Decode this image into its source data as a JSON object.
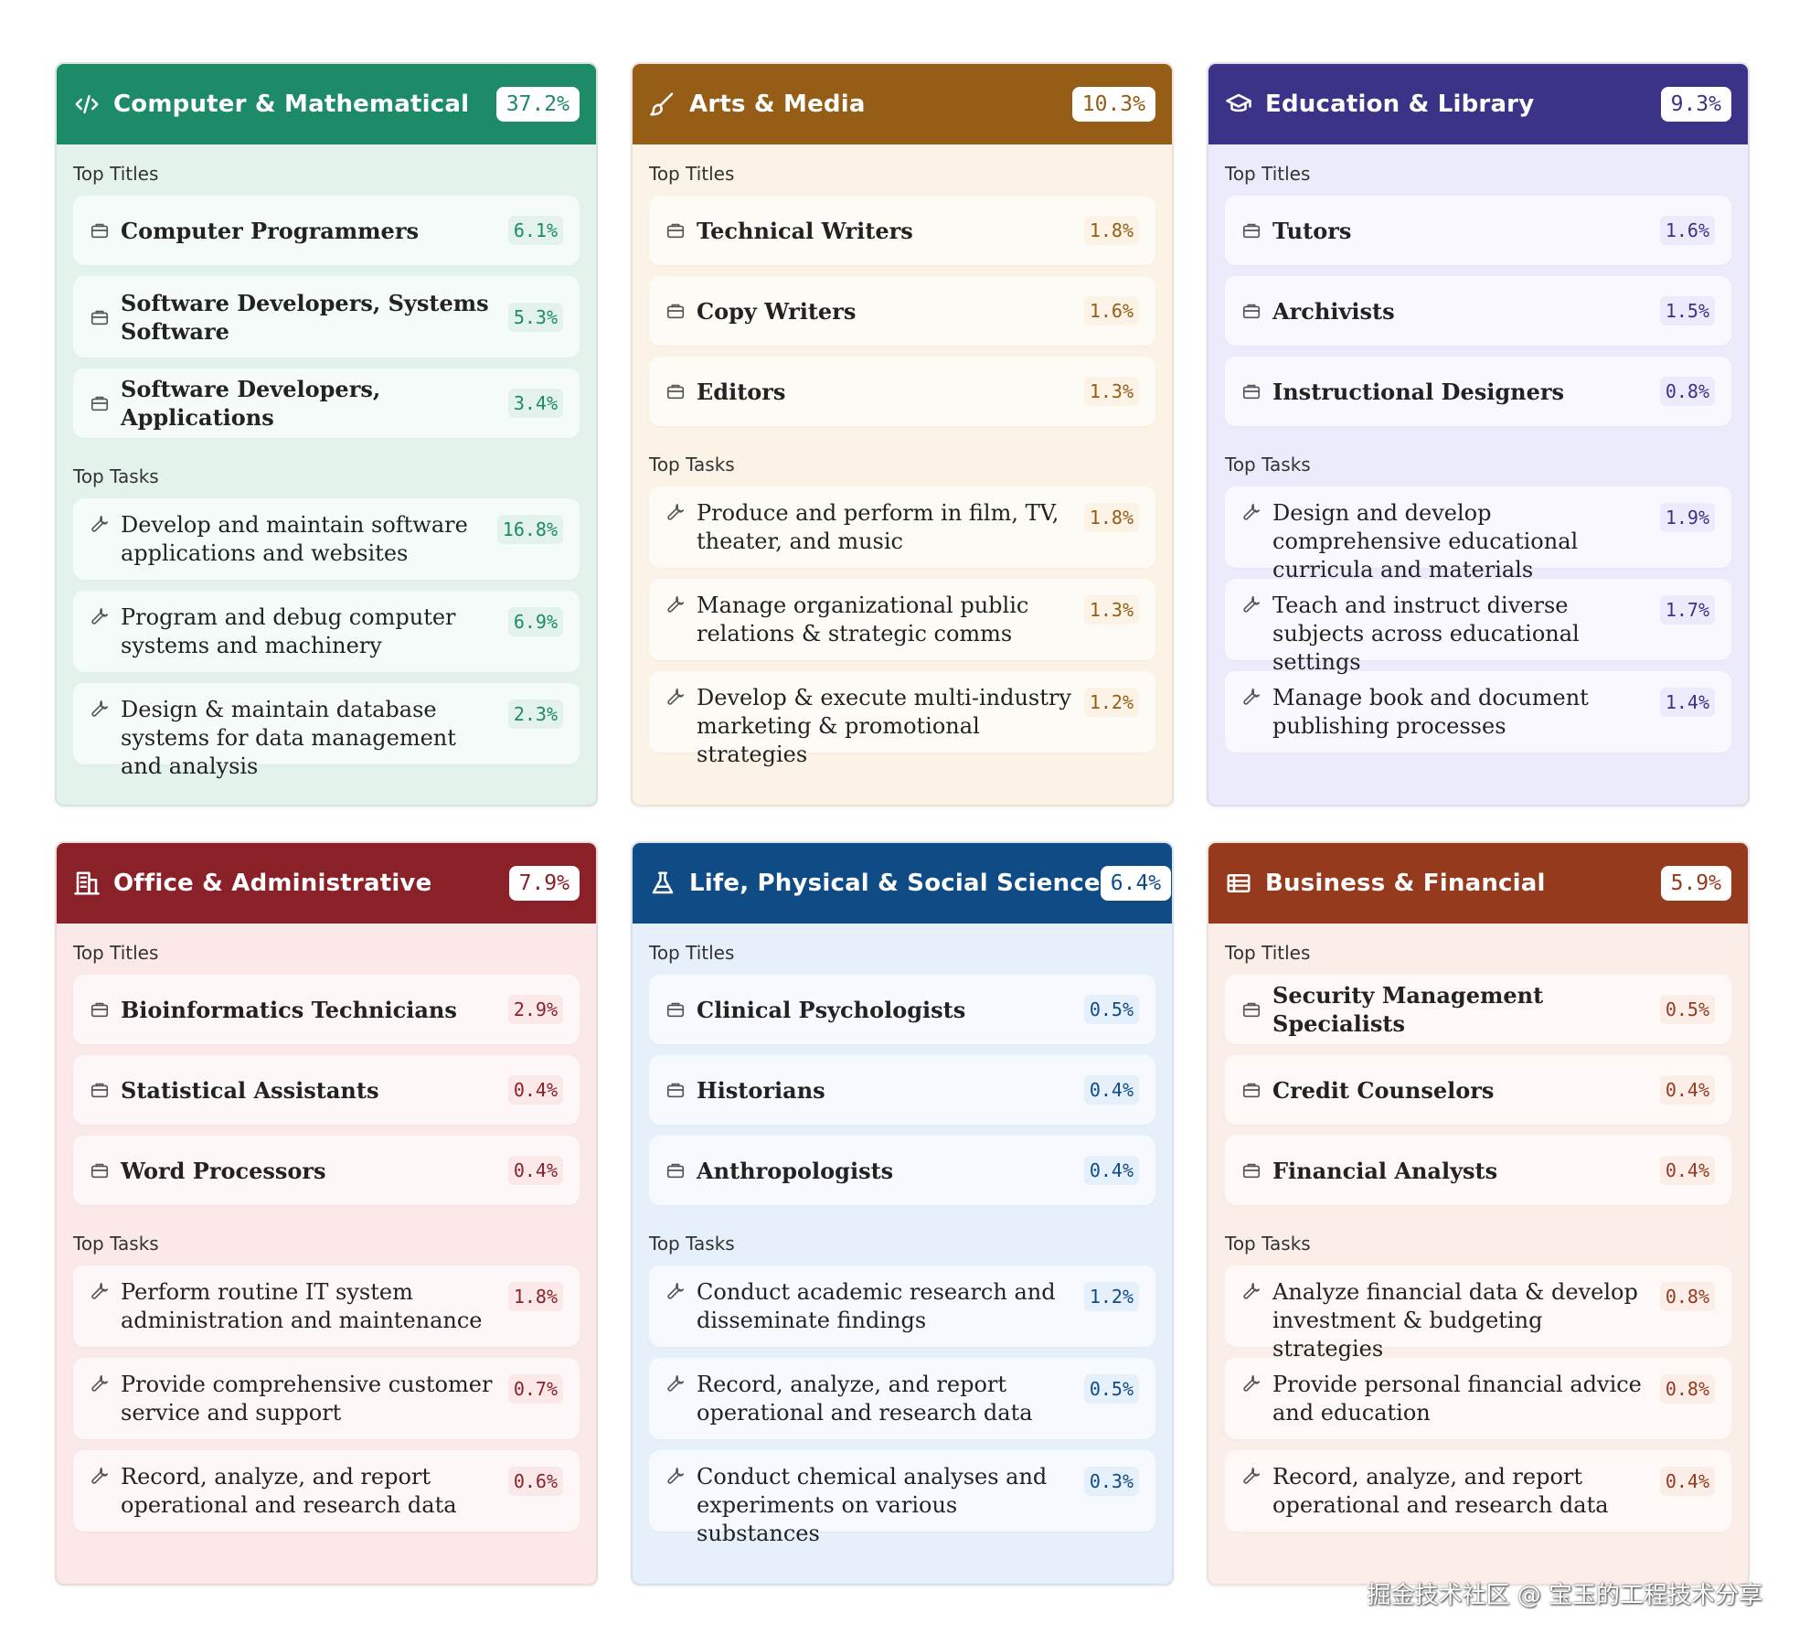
{
  "cards": [
    {
      "title": "Computer & Mathematical",
      "icon": "code-icon",
      "pct": "37.2%",
      "header_color": "#1d8a68",
      "body_color": "#e3f3ec",
      "pct_color": "#1d8a68",
      "titles_label": "Top Titles",
      "tasks_label": "Top Tasks",
      "titles": [
        {
          "text": "Computer Programmers",
          "pct": "6.1%"
        },
        {
          "text": "Software Developers, Systems Software",
          "pct": "5.3%"
        },
        {
          "text": "Software Developers, Applications",
          "pct": "3.4%"
        }
      ],
      "tasks": [
        {
          "text": "Develop and maintain software applications and websites",
          "pct": "16.8%"
        },
        {
          "text": "Program and debug computer systems and machinery",
          "pct": "6.9%"
        },
        {
          "text": "Design & maintain database systems for data management and analysis",
          "pct": "2.3%"
        }
      ]
    },
    {
      "title": "Arts & Media",
      "icon": "brush-icon",
      "pct": "10.3%",
      "header_color": "#955d15",
      "body_color": "#fbf3e6",
      "pct_color": "#955d15",
      "titles_label": "Top Titles",
      "tasks_label": "Top Tasks",
      "titles": [
        {
          "text": "Technical Writers",
          "pct": "1.8%"
        },
        {
          "text": "Copy Writers",
          "pct": "1.6%"
        },
        {
          "text": "Editors",
          "pct": "1.3%"
        }
      ],
      "tasks": [
        {
          "text": "Produce and perform in film, TV, theater, and music",
          "pct": "1.8%"
        },
        {
          "text": "Manage organizational public relations & strategic comms",
          "pct": "1.3%"
        },
        {
          "text": "Develop & execute multi-industry marketing & promotional strategies",
          "pct": "1.2%"
        }
      ]
    },
    {
      "title": "Education & Library",
      "icon": "graduation-cap-icon",
      "pct": "9.3%",
      "header_color": "#3a3388",
      "body_color": "#ecebfb",
      "pct_color": "#3a3388",
      "titles_label": "Top Titles",
      "tasks_label": "Top Tasks",
      "titles": [
        {
          "text": "Tutors",
          "pct": "1.6%"
        },
        {
          "text": "Archivists",
          "pct": "1.5%"
        },
        {
          "text": "Instructional Designers",
          "pct": "0.8%"
        }
      ],
      "tasks": [
        {
          "text": "Design and develop comprehensive educational curricula and materials",
          "pct": "1.9%"
        },
        {
          "text": "Teach and instruct diverse subjects across educational settings",
          "pct": "1.7%"
        },
        {
          "text": "Manage book and document publishing processes",
          "pct": "1.4%"
        }
      ]
    },
    {
      "title": "Office & Administrative",
      "icon": "office-building-icon",
      "pct": "7.9%",
      "header_color": "#8b2128",
      "body_color": "#fbe8e8",
      "pct_color": "#8b2128",
      "titles_label": "Top Titles",
      "tasks_label": "Top Tasks",
      "titles": [
        {
          "text": "Bioinformatics Technicians",
          "pct": "2.9%"
        },
        {
          "text": "Statistical Assistants",
          "pct": "0.4%"
        },
        {
          "text": "Word Processors",
          "pct": "0.4%"
        }
      ],
      "tasks": [
        {
          "text": "Perform routine IT system administration and maintenance",
          "pct": "1.8%"
        },
        {
          "text": "Provide comprehensive customer service and support",
          "pct": "0.7%"
        },
        {
          "text": "Record, analyze, and report operational and research data",
          "pct": "0.6%"
        }
      ]
    },
    {
      "title": "Life, Physical & Social Science",
      "icon": "flask-icon",
      "pct": "6.4%",
      "header_color": "#0f4c86",
      "body_color": "#e6f0fb",
      "pct_color": "#0f4c86",
      "titles_label": "Top Titles",
      "tasks_label": "Top Tasks",
      "titles": [
        {
          "text": "Clinical Psychologists",
          "pct": "0.5%"
        },
        {
          "text": "Historians",
          "pct": "0.4%"
        },
        {
          "text": "Anthropologists",
          "pct": "0.4%"
        }
      ],
      "tasks": [
        {
          "text": "Conduct academic research and disseminate findings",
          "pct": "1.2%"
        },
        {
          "text": "Record, analyze, and report operational and research data",
          "pct": "0.5%"
        },
        {
          "text": "Conduct chemical analyses and experiments on various substances",
          "pct": "0.3%"
        }
      ]
    },
    {
      "title": "Business & Financial",
      "icon": "ledger-icon",
      "pct": "5.9%",
      "header_color": "#963a1e",
      "body_color": "#fbeee9",
      "pct_color": "#963a1e",
      "titles_label": "Top Titles",
      "tasks_label": "Top Tasks",
      "titles": [
        {
          "text": "Security Management Specialists",
          "pct": "0.5%"
        },
        {
          "text": "Credit Counselors",
          "pct": "0.4%"
        },
        {
          "text": "Financial Analysts",
          "pct": "0.4%"
        }
      ],
      "tasks": [
        {
          "text": "Analyze financial data & develop investment & budgeting strategies",
          "pct": "0.8%"
        },
        {
          "text": "Provide personal financial advice and education",
          "pct": "0.8%"
        },
        {
          "text": "Record, analyze, and report operational and research data",
          "pct": "0.4%"
        }
      ]
    }
  ],
  "watermark": "掘金技术社区 @ 宝玉的工程技术分享"
}
